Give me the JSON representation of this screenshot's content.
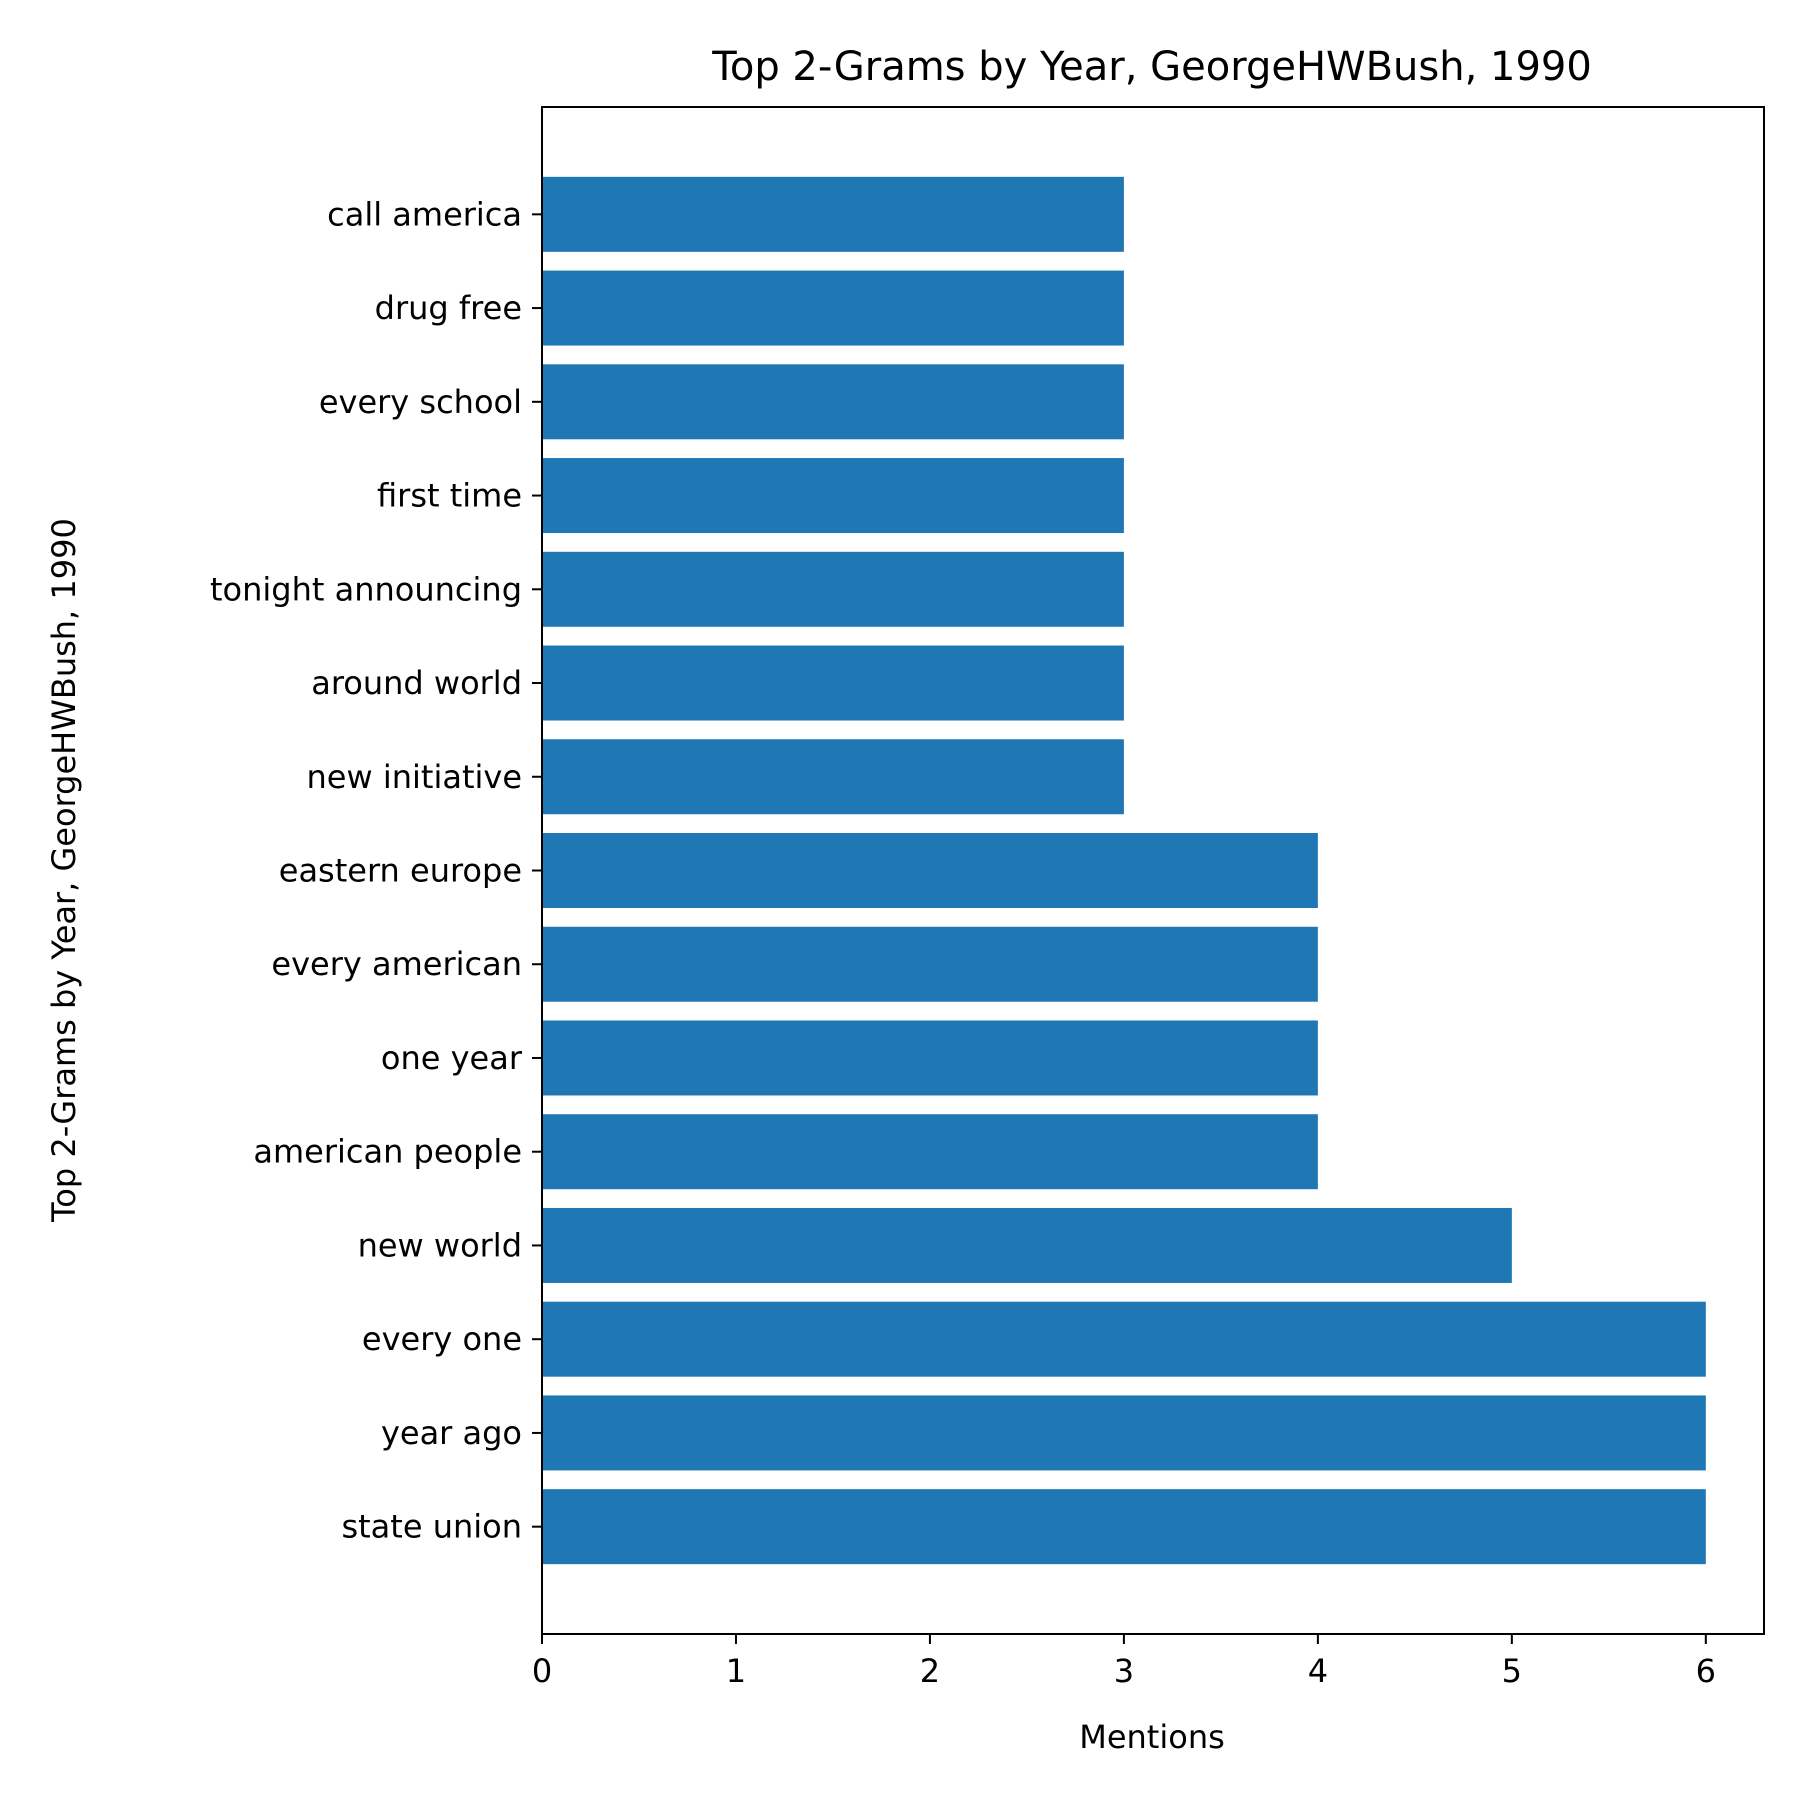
{
  "chart_data": {
    "type": "bar",
    "orientation": "horizontal",
    "title": "Top 2-Grams by Year, GeorgeHWBush, 1990",
    "xlabel": "Mentions",
    "ylabel": "Top 2-Grams by Year, GeorgeHWBush, 1990",
    "xlim": [
      0,
      6.3
    ],
    "xticks": [
      "0",
      "1",
      "2",
      "3",
      "4",
      "5",
      "6"
    ],
    "grid": false,
    "legend": "none",
    "bar_color": "#1f77b4",
    "categories": [
      "state union",
      "year ago",
      "every one",
      "new world",
      "american people",
      "one year",
      "every american",
      "eastern europe",
      "new initiative",
      "around world",
      "tonight announcing",
      "first time",
      "every school",
      "drug free",
      "call america"
    ],
    "values": [
      6,
      6,
      6,
      5,
      4,
      4,
      4,
      4,
      3,
      3,
      3,
      3,
      3,
      3,
      3
    ]
  }
}
